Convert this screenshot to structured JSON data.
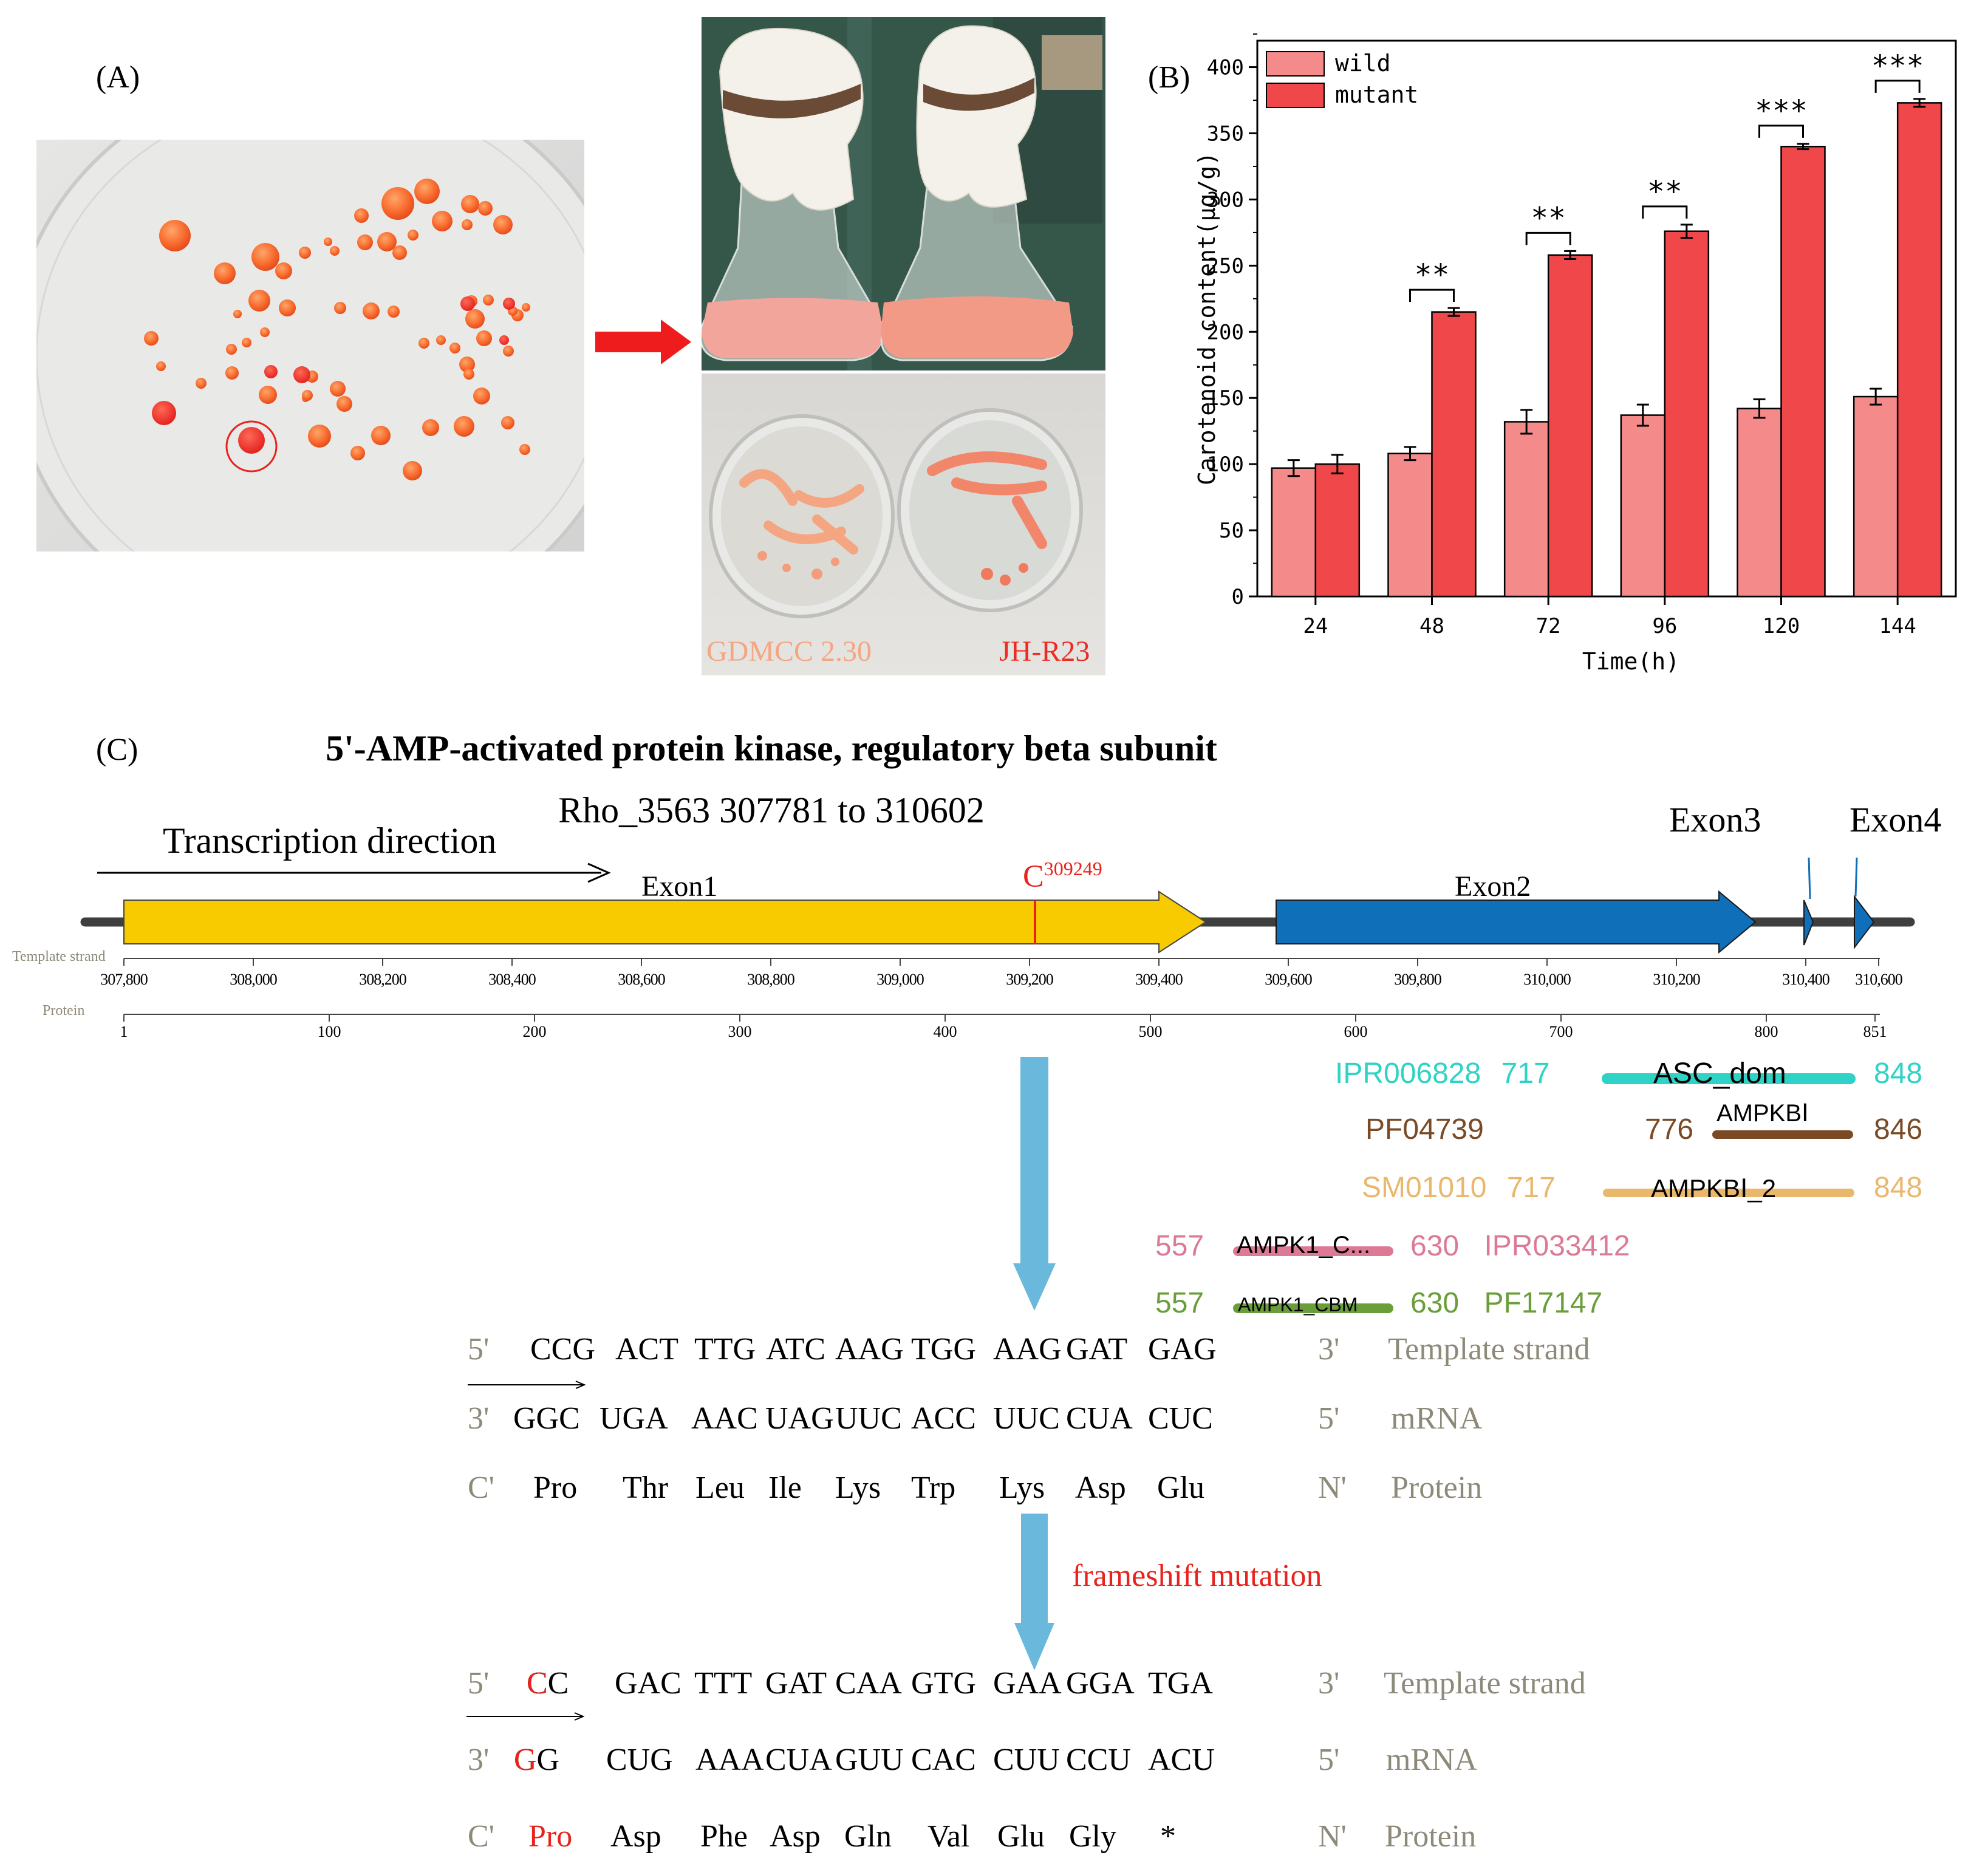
{
  "panels": {
    "a": "(A)",
    "b": "(B)",
    "c": "(C)"
  },
  "photo_labels": {
    "wild_strain": "GDMCC 2.30",
    "mutant_strain": "JH-R23"
  },
  "colors": {
    "wild": "#f58a8a",
    "mutant": "#f0474a",
    "exon_yellow": "#f7cb00",
    "exon_blue": "#0f6fb8",
    "arrow_blue": "#6ab8dc",
    "mutation_red": "#e8221c"
  },
  "chart_data": {
    "type": "bar",
    "title": "",
    "xlabel": "Time(h)",
    "ylabel": "Carotenoid content(μg/g)",
    "categories": [
      "24",
      "48",
      "72",
      "96",
      "120",
      "144"
    ],
    "series": [
      {
        "name": "wild",
        "values": [
          97,
          108,
          132,
          137,
          142,
          151
        ],
        "errors": [
          6,
          5,
          9,
          8,
          7,
          6
        ]
      },
      {
        "name": "mutant",
        "values": [
          100,
          215,
          258,
          276,
          340,
          373
        ],
        "errors": [
          7,
          3,
          3,
          5,
          2,
          3
        ]
      }
    ],
    "significance": [
      "",
      "**",
      "**",
      "**",
      "***",
      "***"
    ],
    "ylim": [
      0,
      420
    ],
    "yticks": [
      0,
      50,
      100,
      150,
      200,
      250,
      300,
      350,
      400
    ],
    "legend": "top-left"
  },
  "gene": {
    "title": "5'-AMP-activated protein kinase, regulatory beta subunit",
    "locus": "Rho_3563  307781 to 310602",
    "direction": "Transcription direction",
    "mutation_site": "C",
    "mutation_pos": "309249",
    "exons": [
      "Exon1",
      "Exon2",
      "Exon3",
      "Exon4"
    ],
    "template_axis_label": "Template strand",
    "template_ticks": [
      "307,800",
      "308,000",
      "308,200",
      "308,400",
      "308,600",
      "308,800",
      "309,000",
      "309,200",
      "309,400",
      "309,600",
      "309,800",
      "310,000",
      "310,200",
      "310,400",
      "310,600"
    ],
    "protein_axis_label": "Protein",
    "protein_ticks": [
      "1",
      "100",
      "200",
      "300",
      "400",
      "500",
      "600",
      "700",
      "800",
      "851"
    ]
  },
  "domains": [
    {
      "id": "IPR006828",
      "start": "717",
      "end": "848",
      "name": "ASC_dom",
      "color": "#2ed3c5"
    },
    {
      "id": "PF04739",
      "start": "776",
      "end": "846",
      "name": "AMPKBⅠ",
      "color": "#7a4a25"
    },
    {
      "id": "SM01010",
      "start": "717",
      "end": "848",
      "name": "AMPKBⅠ_2",
      "color": "#e9b86d"
    },
    {
      "id": "IPR033412",
      "start": "557",
      "end": "630",
      "name": "AMPK1_C...",
      "color": "#dc7a96"
    },
    {
      "id": "PF17147",
      "start": "557",
      "end": "630",
      "name": "AMPK1_CBM",
      "color": "#6a9e3a"
    }
  ],
  "mutation_label": "frameshift mutation",
  "wild_seq": {
    "template": {
      "left": "5'",
      "codons": [
        "CCG",
        "ACT",
        "TTG",
        "ATC",
        "AAG",
        "TGG",
        "AAG",
        "GAT",
        "GAG"
      ],
      "right": "3'",
      "label": "Template strand"
    },
    "mrna": {
      "left": "3'",
      "codons": [
        "GGC",
        "UGA",
        "AAC",
        "UAG",
        "UUC",
        "ACC",
        "UUC",
        "CUA",
        "CUC"
      ],
      "right": "5'",
      "label": "mRNA"
    },
    "protein": {
      "left": "C'",
      "codons": [
        "Pro",
        "Thr",
        "Leu",
        "Ile",
        "Lys",
        "Trp",
        "Lys",
        "Asp",
        "Glu"
      ],
      "right": "N'",
      "label": "Protein"
    }
  },
  "mutant_seq": {
    "template": {
      "left": "5'",
      "first": "CC",
      "first_red": "C",
      "codons": [
        "GAC",
        "TTT",
        "GAT",
        "CAA",
        "GTG",
        "GAA",
        "GGA",
        "TGA"
      ],
      "right": "3'",
      "label": "Template strand"
    },
    "mrna": {
      "left": "3'",
      "first": "GG",
      "first_red": "G",
      "codons": [
        "CUG",
        "AAA",
        "CUA",
        "GUU",
        "CAC",
        "CUU",
        "CCU",
        "ACU"
      ],
      "right": "5'",
      "label": "mRNA"
    },
    "protein": {
      "left": "C'",
      "first_red": "Pro",
      "codons": [
        "Asp",
        "Phe",
        "Asp",
        "Gln",
        "Val",
        "Glu",
        "Gly",
        "*"
      ],
      "right": "N'",
      "label": "Protein"
    }
  }
}
